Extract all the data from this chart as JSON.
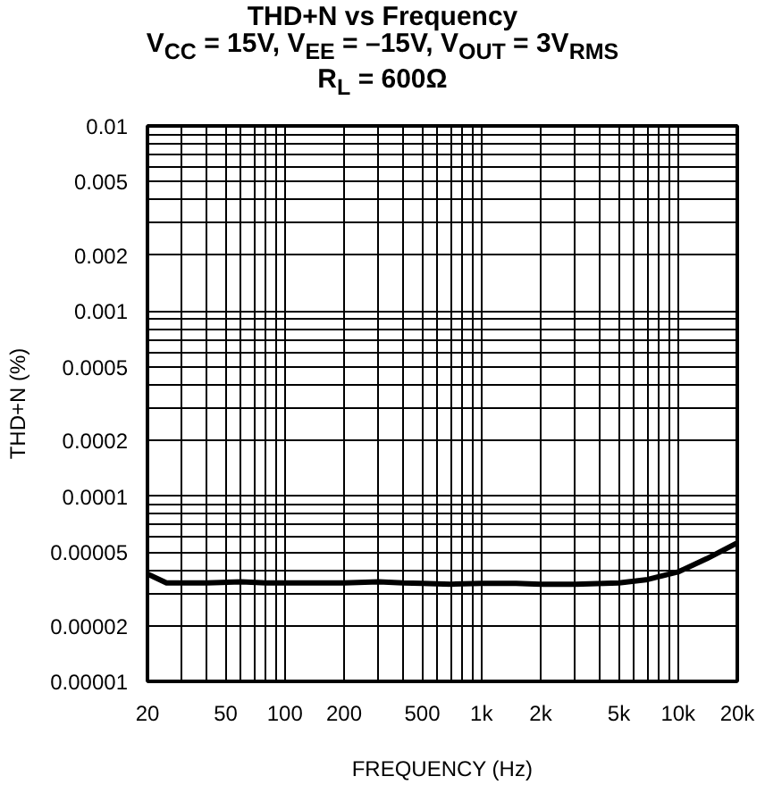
{
  "chart_data": {
    "type": "line",
    "title": "THD+N vs Frequency",
    "subtitle": "V$_{CC}$ = 15V, V$_{EE}$ = –15V, V$_{OUT}$ = 3V$_{RMS}$\nR$_{L}$ = 600Ω",
    "xlabel": "FREQUENCY (Hz)",
    "ylabel": "THD+N (%)",
    "log": "xy",
    "grid": true,
    "xlim": [
      20,
      20000
    ],
    "ylim": [
      1e-05,
      0.01
    ],
    "xticks": [
      20,
      50,
      100,
      200,
      500,
      {
        "value": 1000,
        "label": "1k"
      },
      {
        "value": 2000,
        "label": "2k"
      },
      {
        "value": 5000,
        "label": "5k"
      },
      {
        "value": 10000,
        "label": "10k"
      },
      {
        "value": 20000,
        "label": "20k"
      }
    ],
    "yticks": [
      {
        "value": 1e-05,
        "label": "0.00001"
      },
      {
        "value": 2e-05,
        "label": "0.00002"
      },
      {
        "value": 5e-05,
        "label": "0.00005"
      },
      {
        "value": 0.0001,
        "label": "0.0001"
      },
      {
        "value": 0.0002,
        "label": "0.0002"
      },
      {
        "value": 0.0005,
        "label": "0.0005"
      },
      {
        "value": 0.001,
        "label": "0.001"
      },
      {
        "value": 0.002,
        "label": "0.002"
      },
      {
        "value": 0.005,
        "label": "0.005"
      },
      {
        "value": 0.01,
        "label": "0.01"
      }
    ],
    "x": [
      20,
      25,
      30,
      40,
      60,
      80,
      100,
      200,
      300,
      400,
      500,
      700,
      1000,
      1500,
      2000,
      3000,
      5000,
      7000,
      10000,
      14000,
      20000
    ],
    "series": [
      {
        "color": "#000000",
        "values": [
          3.8e-05,
          3.4e-05,
          3.4e-05,
          3.4e-05,
          3.45e-05,
          3.4e-05,
          3.4e-05,
          3.4e-05,
          3.45e-05,
          3.4e-05,
          3.38e-05,
          3.35e-05,
          3.38e-05,
          3.38e-05,
          3.35e-05,
          3.35e-05,
          3.4e-05,
          3.55e-05,
          3.9e-05,
          4.6e-05,
          5.6e-05
        ]
      }
    ]
  }
}
